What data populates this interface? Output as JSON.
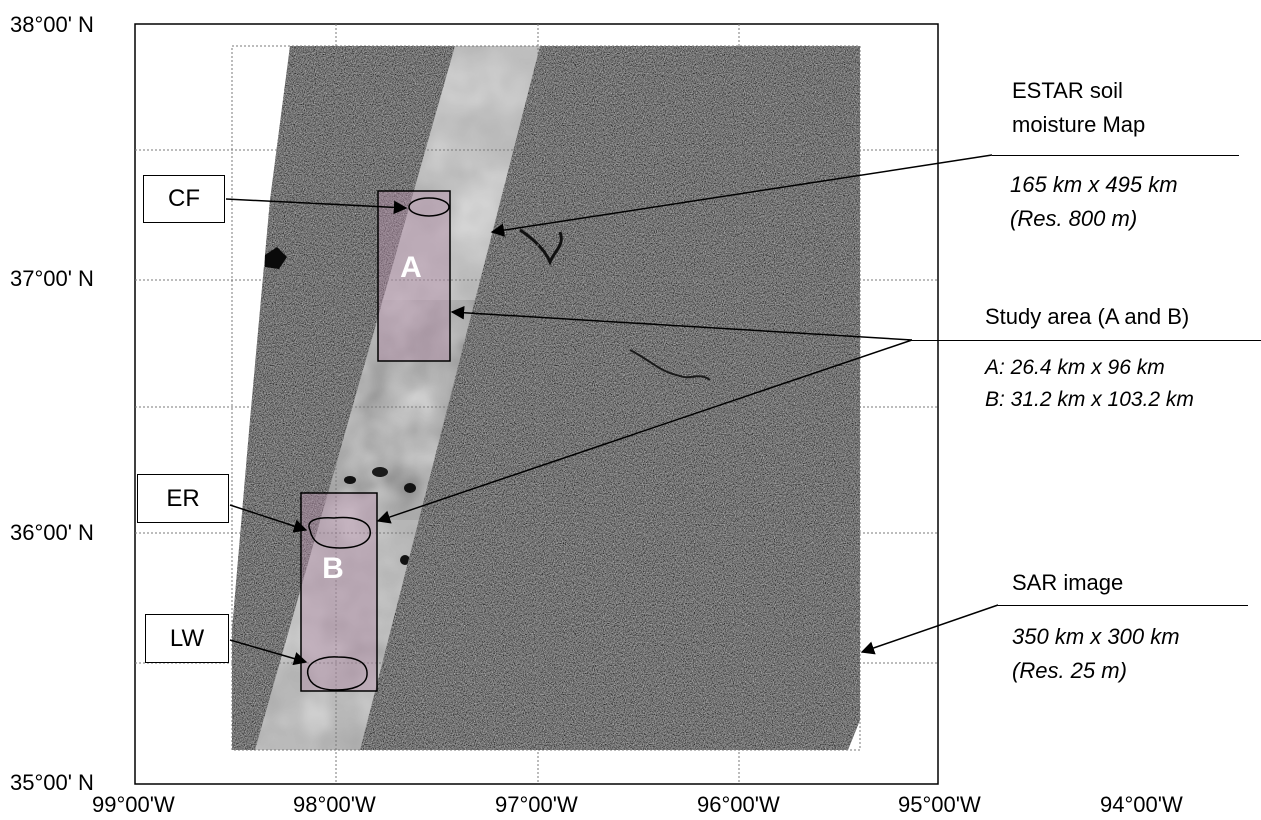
{
  "map": {
    "lat_labels": [
      "38°00' N",
      "37°00' N",
      "36°00' N",
      "35°00' N"
    ],
    "lon_labels": [
      "99°00'W",
      "98°00'W",
      "97°00'W",
      "96°00'W",
      "95°00'W",
      "94°00'W"
    ],
    "study_area_a_letter": "A",
    "study_area_b_letter": "B",
    "site_boxes": {
      "cf": "CF",
      "er": "ER",
      "lw": "LW"
    },
    "colors": {
      "study_area_fill": "#b48fa8",
      "estar_strip": "#c7c7c7",
      "sar_dark": "#4a4a4a",
      "gridline": "#7a7a7a"
    }
  },
  "annotations": {
    "estar": {
      "title_line1": "ESTAR soil",
      "title_line2": "moisture Map",
      "size": "165 km x 495 km",
      "res": "(Res. 800 m)"
    },
    "study": {
      "title": "Study area (A and B)",
      "a": "A: 26.4 km x 96 km",
      "b": "B: 31.2 km x 103.2 km"
    },
    "sar": {
      "title": "SAR image",
      "size": "350 km x 300 km",
      "res": "(Res. 25 m)"
    }
  }
}
